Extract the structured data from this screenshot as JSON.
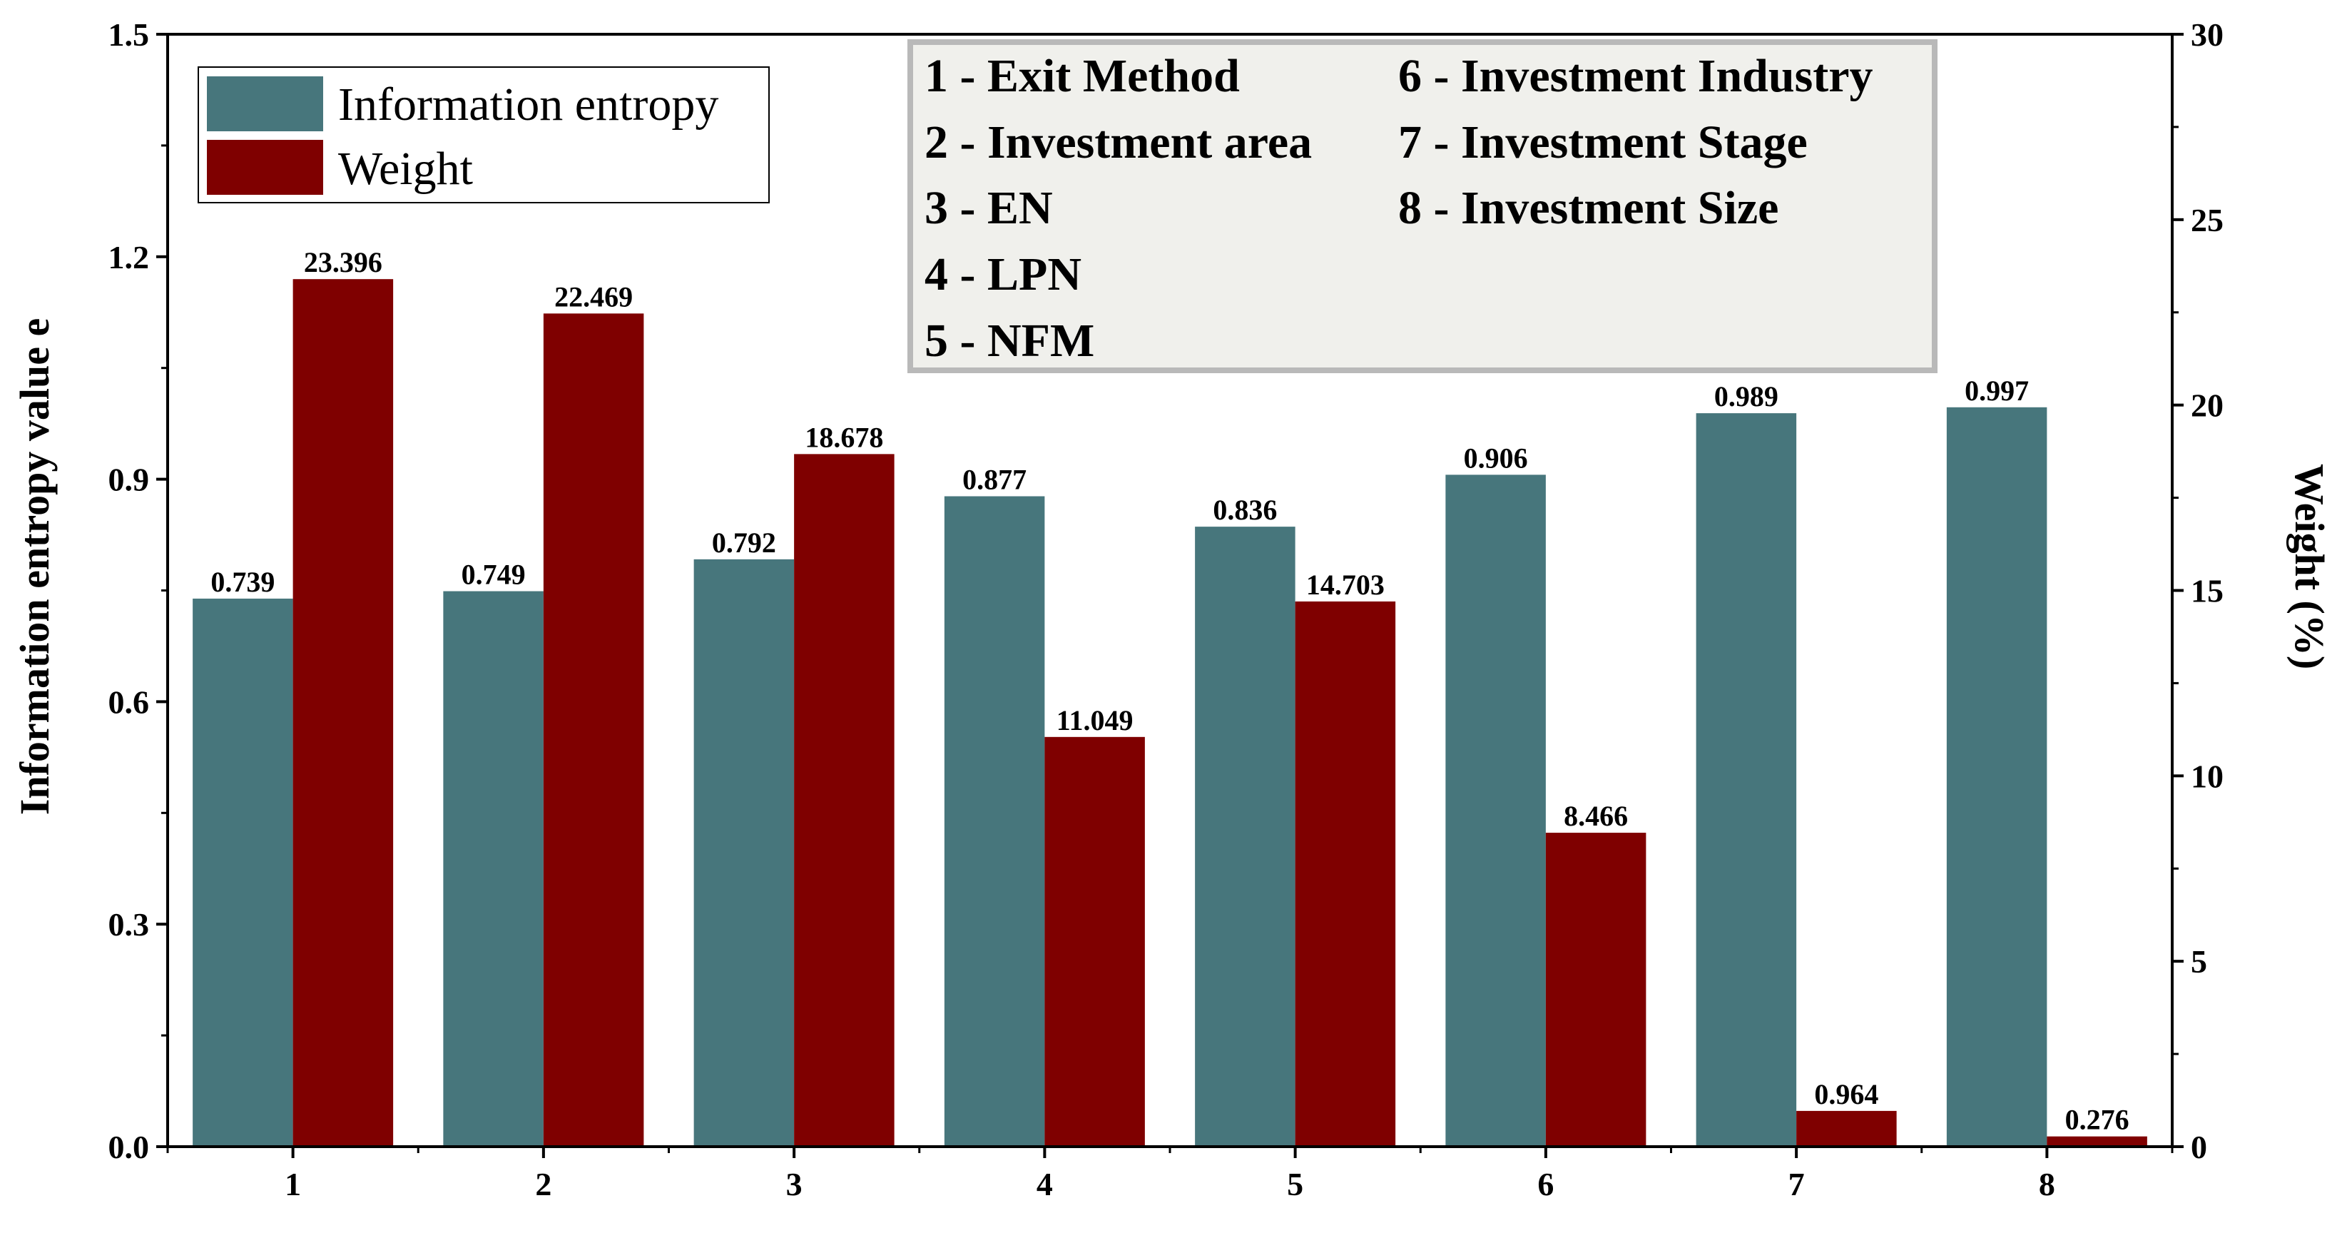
{
  "chart_data": {
    "type": "bar",
    "categories": [
      "1",
      "2",
      "3",
      "4",
      "5",
      "6",
      "7",
      "8"
    ],
    "series": [
      {
        "name": "Information entropy",
        "axis": "left",
        "color": "#47767c",
        "values": [
          0.739,
          0.749,
          0.792,
          0.877,
          0.836,
          0.906,
          0.989,
          0.997
        ],
        "labels": [
          "0.739",
          "0.749",
          "0.792",
          "0.877",
          "0.836",
          "0.906",
          "0.989",
          "0.997"
        ]
      },
      {
        "name": "Weight",
        "axis": "right",
        "color": "#7f0000",
        "values": [
          23.396,
          22.469,
          18.678,
          11.049,
          14.703,
          8.466,
          0.964,
          0.276
        ],
        "labels": [
          "23.396",
          "22.469",
          "18.678",
          "11.049",
          "14.703",
          "8.466",
          "0.964",
          "0.276"
        ]
      }
    ],
    "ylabel": "Information entropy value e",
    "y2label": "Weight (%)",
    "xlabel": "",
    "ylim": [
      0,
      1.5
    ],
    "y2lim": [
      0,
      30
    ],
    "yticks": [
      "0.0",
      "0.3",
      "0.6",
      "0.9",
      "1.2",
      "1.5"
    ],
    "y2ticks": [
      "0",
      "5",
      "10",
      "15",
      "20",
      "25",
      "30"
    ],
    "grid": false,
    "legend_position": "top-left",
    "annotation_box": {
      "background": "#f0f0ec",
      "lines": [
        "1 - Exit Method",
        "2 - Investment area",
        "3 - EN",
        "4 - LPN",
        "5 - NFM",
        "6 - Investment Industry",
        "7 - Investment Stage",
        "8 - Investment Size"
      ]
    }
  }
}
